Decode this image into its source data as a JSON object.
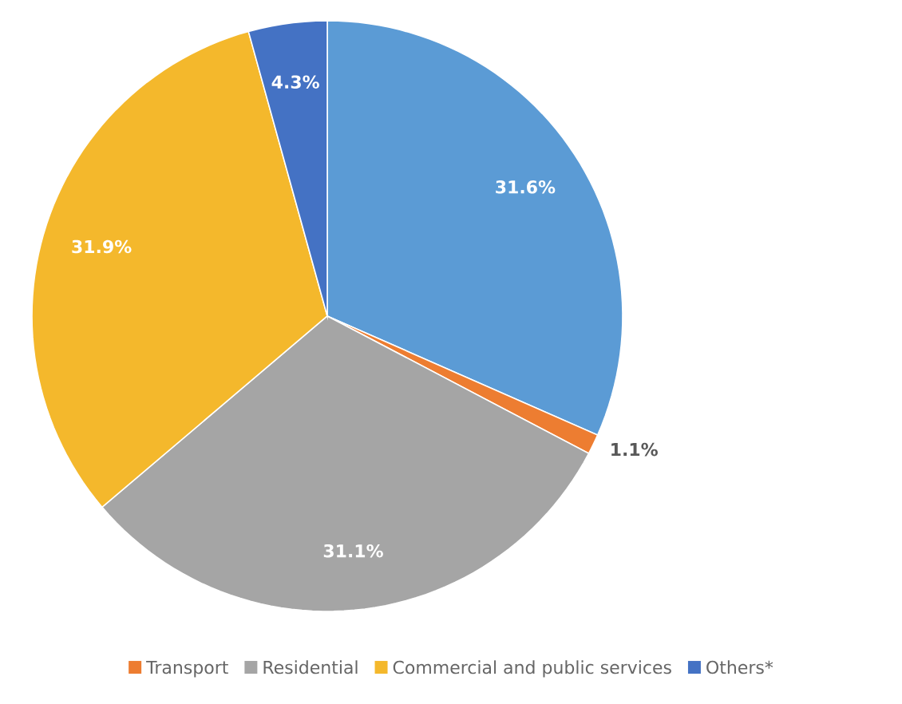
{
  "chart_data": {
    "type": "pie",
    "categories": [
      null,
      "Transport",
      "Residential",
      "Commercial and public services",
      "Others*"
    ],
    "values": [
      31.6,
      1.1,
      31.1,
      31.9,
      4.3
    ],
    "value_labels": [
      "31.6%",
      "1.1%",
      "31.1%",
      "31.9%",
      "4.3%"
    ],
    "colors": [
      "#5b9bd5",
      "#ed7d31",
      "#a5a5a5",
      "#f4b82c",
      "#4472c4"
    ],
    "legend": "bottom"
  }
}
